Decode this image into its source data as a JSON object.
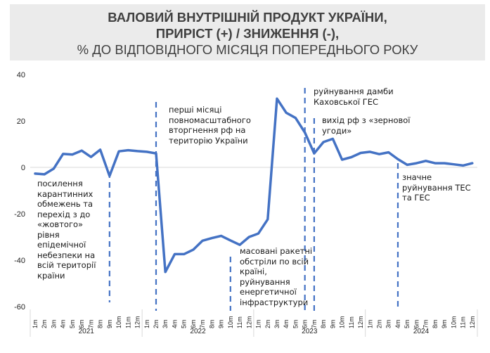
{
  "title": {
    "line1": "ВАЛОВИЙ ВНУТРІШНІЙ ПРОДУКТ УКРАЇНИ,",
    "line2": "ПРИРІСТ (+) / ЗНИЖЕННЯ (-),",
    "line3": "%  ДО ВІДПОВІДНОГО МІСЯЦЯ ПОПЕРЕДНЬОГО РОКУ"
  },
  "chart_data": {
    "type": "line",
    "title": "ВАЛОВИЙ ВНУТРІШНІЙ ПРОДУКТ УКРАЇНИ, ПРИРІСТ (+) / ЗНИЖЕННЯ (-), %  ДО ВІДПОВІДНОГО МІСЯЦЯ ПОПЕРЕДНЬОГО РОКУ",
    "ylim": [
      -60,
      40
    ],
    "yticks": [
      "40",
      "20",
      "0",
      "-20",
      "-40",
      "-60"
    ],
    "ytick_values": [
      40,
      20,
      0,
      -20,
      -40,
      -60
    ],
    "years": [
      "2021",
      "2022",
      "2023",
      "2024"
    ],
    "months": [
      "1m",
      "2m",
      "3m",
      "4m",
      "5m",
      "6m",
      "7m",
      "8m",
      "9m",
      "10m",
      "11m",
      "12m"
    ],
    "grid": "zero line only",
    "line_color": "#4472c4",
    "values": [
      -2.7,
      -3.0,
      -0.5,
      5.8,
      5.5,
      7.2,
      4.5,
      7.6,
      -3.7,
      6.9,
      7.4,
      7.0,
      6.7,
      6.0,
      -45.1,
      -37.4,
      -37.4,
      -35.5,
      -31.6,
      -30.5,
      -29.5,
      -31.5,
      -33.4,
      -30.0,
      -28.5,
      -22.4,
      29.6,
      23.5,
      21.3,
      15.0,
      6.0,
      10.9,
      12.3,
      3.3,
      4.4,
      6.2,
      6.7,
      5.7,
      6.5,
      3.5,
      1.1,
      1.8,
      2.8,
      1.8,
      1.8,
      1.3,
      0.8,
      1.8
    ],
    "annotations": [
      {
        "year": "2021",
        "month": "9m",
        "text": [
          "посилення",
          "карантинних",
          "обмежень та",
          "перехід з до",
          "«жовтого»",
          "рівня",
          "епідемічної",
          "небезпеки на",
          "всій території",
          "країни"
        ]
      },
      {
        "year": "2022",
        "month": "2m",
        "text": [
          "перші місяці",
          "повномасштабного",
          "вторгнення рф на",
          "територію України"
        ]
      },
      {
        "year": "2022",
        "month": "10m",
        "text": [
          "масовані ракетні",
          "обстріли по всій",
          "країні,",
          "руйнування",
          "енергетичної",
          "інфраструктури"
        ]
      },
      {
        "year": "2023",
        "month": "6m",
        "text": [
          "руйнування дамби",
          "Каховської ГЕС"
        ]
      },
      {
        "year": "2023",
        "month": "7m",
        "text": [
          "вихід рф з «зернової",
          "угоди»"
        ]
      },
      {
        "year": "2024",
        "month": "4m",
        "text": [
          "значне",
          "руйнування ТЕС",
          "та ГЕС"
        ]
      }
    ]
  }
}
